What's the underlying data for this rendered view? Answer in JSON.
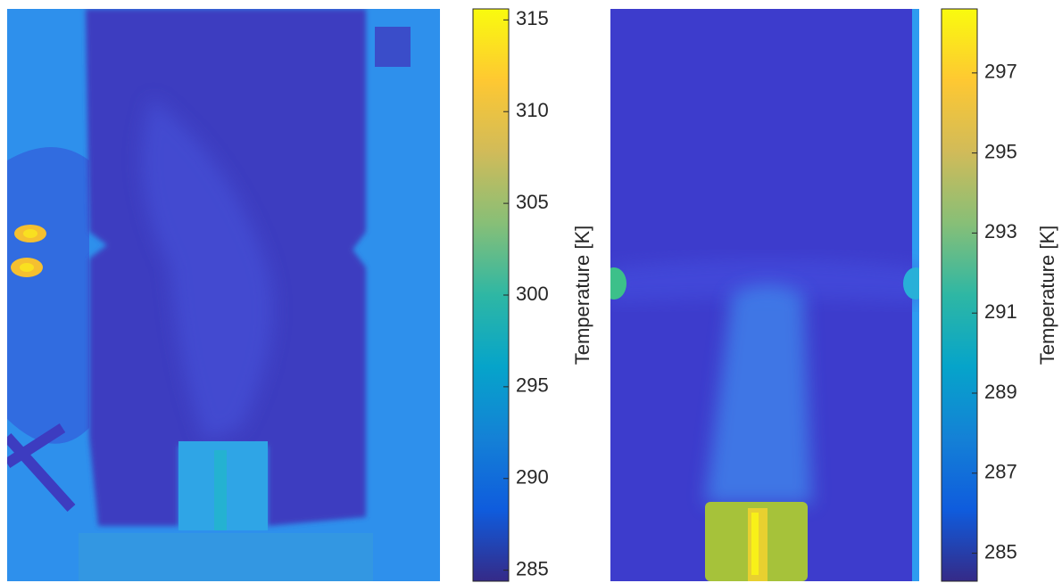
{
  "chart_data": [
    {
      "type": "heatmap",
      "colormap": "parula",
      "colorbar_label": "Temperature [K]",
      "ylim": [
        284.4,
        315.6
      ],
      "yticks": [
        285,
        290,
        295,
        300,
        305,
        310,
        315
      ]
    },
    {
      "type": "heatmap",
      "colormap": "parula",
      "colorbar_label": "Temperature [K]",
      "ylim": [
        284.3,
        298.6
      ],
      "yticks": [
        285,
        287,
        289,
        291,
        293,
        295,
        297
      ]
    }
  ]
}
